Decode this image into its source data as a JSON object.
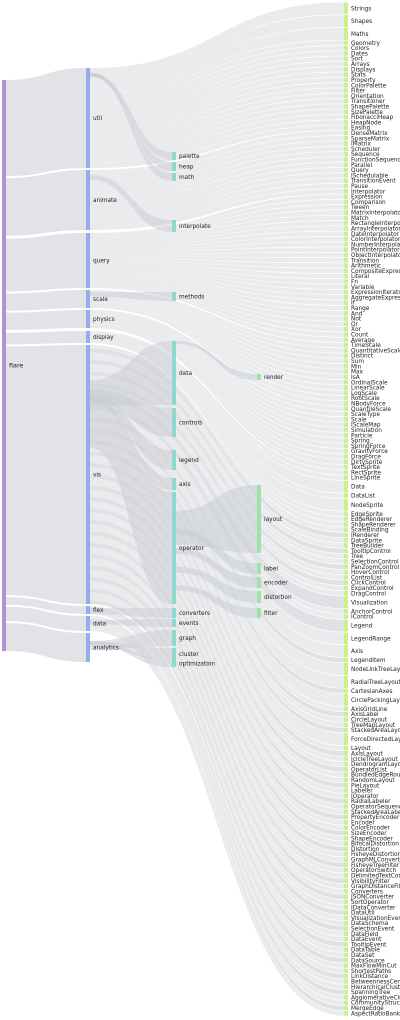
{
  "colors": {
    "level0": "#b58fd8",
    "level1": "#96acec",
    "level2": "#8ed9cf",
    "level3": "#9fe3aa",
    "level4": "#c8f28d",
    "link": "#c9ccd3",
    "link_dark": "#8e939e",
    "text": "#222222"
  },
  "levels": [
    [
      "flare"
    ],
    [
      "util",
      "animate",
      "query",
      "scale",
      "physics",
      "display",
      "vis",
      "flex",
      "data",
      "analytics"
    ],
    [
      "palette",
      "heap",
      "math",
      "interpolate",
      "methods",
      "data",
      "controls",
      "legend",
      "axis",
      "operator",
      "converters",
      "events",
      "graph",
      "cluster",
      "optimization"
    ],
    [
      "render",
      "layout",
      "label",
      "encoder",
      "distortion",
      "filter"
    ],
    [
      "Strings",
      "Shapes",
      "Maths",
      "Geometry",
      "Colors",
      "Dates",
      "Sort",
      "Arrays",
      "Displays",
      "Stats",
      "Property",
      "ColorPalette",
      "Filter",
      "Orientation",
      "Transitioner",
      "ShapePalette",
      "SizePalette",
      "FibonacciHeap",
      "HeapNode",
      "Easing",
      "DenseMatrix",
      "SparseMatrix",
      "IMatrix",
      "Scheduler",
      "Sequence",
      "FunctionSequence",
      "Parallel",
      "Query",
      "ISchedulable",
      "TransitionEvent",
      "Pause",
      "Interpolator",
      "Expression",
      "Comparison",
      "Tween",
      "MatrixInterpolator",
      "Match",
      "RectangleInterpolator",
      "ArrayInterpolator",
      "DateInterpolator",
      "ColorInterpolator",
      "NumberInterpolator",
      "PointInterpolator",
      "ObjectInterpolator",
      "Transition",
      "Arithmetic",
      "CompositeExpression",
      "Literal",
      "Fn",
      "Variable",
      "ExpressionIterator",
      "AggregateExpression",
      "If",
      "Range",
      "And",
      "Not",
      "Or",
      "Xor",
      "Count",
      "Average",
      "TimeScale",
      "QuantitativeScale",
      "Distinct",
      "Sum",
      "Min",
      "Max",
      "IsA",
      "OrdinalScale",
      "LinearScale",
      "LogScale",
      "RootScale",
      "NBodyForce",
      "QuantileScale",
      "ScaleType",
      "Scale",
      "IScaleMap",
      "Simulation",
      "Particle",
      "Spring",
      "SpringForce",
      "GravityForce",
      "DragForce",
      "DirtySprite",
      "TextSprite",
      "RectSprite",
      "LineSprite",
      "Data",
      "DataList",
      "NodeSprite",
      "EdgeSprite",
      "EdgeRenderer",
      "ShapeRenderer",
      "ScaleBinding",
      "IRenderer",
      "DataSprite",
      "TreeBuilder",
      "TooltipControl",
      "Tree",
      "SelectionControl",
      "PanZoomControl",
      "HoverControl",
      "ControlList",
      "ClickControl",
      "ExpandControl",
      "DragControl",
      "Visualization",
      "AnchorControl",
      "IControl",
      "Legend",
      "LegendRange",
      "Axis",
      "LegendItem",
      "NodeLinkTreeLayout",
      "RadialTreeLayout",
      "CartesianAxes",
      "CirclePackingLayout",
      "AxisGridLine",
      "AxisLabel",
      "CircleLayout",
      "TreeMapLayout",
      "StackedAreaLayout",
      "ForceDirectedLayout",
      "Layout",
      "AxisLayout",
      "IcicleTreeLayout",
      "DendrogramLayout",
      "OperatorList",
      "BundledEdgeRouter",
      "RandomLayout",
      "PieLayout",
      "Labeler",
      "IOperator",
      "RadialLabeler",
      "OperatorSequence",
      "StackedAreaLabeler",
      "PropertyEncoder",
      "Encoder",
      "ColorEncoder",
      "SizeEncoder",
      "ShapeEncoder",
      "BifocalDistortion",
      "Distortion",
      "FisheyeDistortion",
      "GraphMLConverter",
      "FisheyeTreeFilter",
      "OperatorSwitch",
      "DelimitedTextConverter",
      "VisibilityFilter",
      "GraphDistanceFilter",
      "Converters",
      "JSONConverter",
      "SortOperator",
      "IDataConverter",
      "DataUtil",
      "VisualizationEvent",
      "DataSchema",
      "SelectionEvent",
      "DataField",
      "DataEvent",
      "TooltipEvent",
      "DataTable",
      "DataSet",
      "DataSource",
      "MaxFlowMinCut",
      "ShortestPaths",
      "LinkDistance",
      "BetweennessCentrality",
      "HierarchicalCluster",
      "SpanningTree",
      "AgglomerativeCluster",
      "CommunityStructure",
      "MergeEdge",
      "AspectRatioBanker"
    ]
  ]
}
